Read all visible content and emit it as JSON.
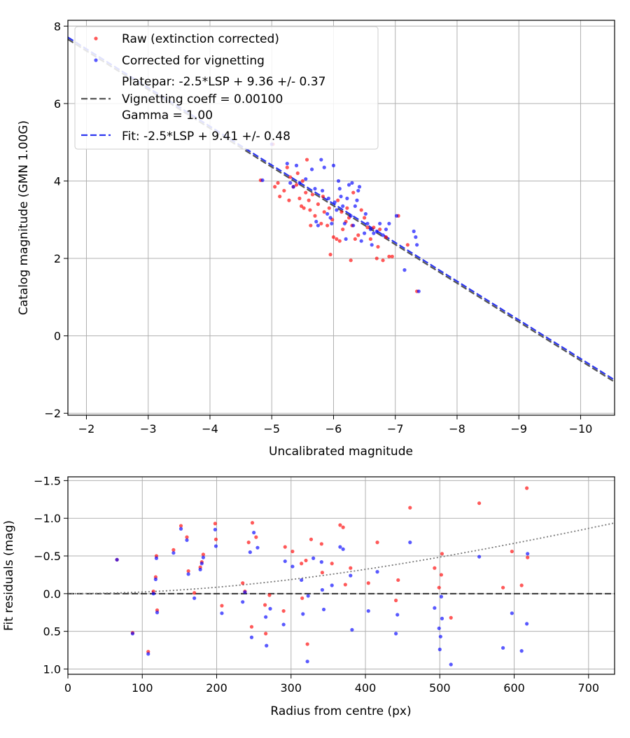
{
  "colors": {
    "raw": "#ff0000",
    "corrected": "#0000ff",
    "platepar_line": "#555555",
    "fit_line": "#2b35f0",
    "grid": "#b0b0b0",
    "zero_line": "#333333",
    "curve": "#777777"
  },
  "chart_data": [
    {
      "type": "scatter",
      "id": "calibration",
      "xlabel": "Uncalibrated magnitude",
      "ylabel": "Catalog magnitude (GMN 1.00G)",
      "xlim": [
        -1.7,
        -10.55
      ],
      "ylim": [
        8.15,
        -2.05
      ],
      "x_ticks": [
        -2,
        -3,
        -4,
        -5,
        -6,
        -7,
        -8,
        -9,
        -10
      ],
      "y_ticks": [
        -2,
        0,
        2,
        4,
        6,
        8
      ],
      "x_tick_labels": [
        "−2",
        "−3",
        "−4",
        "−5",
        "−6",
        "−7",
        "−8",
        "−9",
        "−10"
      ],
      "y_tick_labels": [
        "−2",
        "0",
        "2",
        "4",
        "6",
        "8"
      ],
      "grid": true,
      "legend_position": "top-left",
      "legend": [
        {
          "label": "Raw (extinction corrected)",
          "marker": "dot",
          "color": "raw"
        },
        {
          "label": "Corrected for vignetting",
          "marker": "dot",
          "color": "corrected"
        },
        {
          "label_lines": [
            "Platepar: -2.5*LSP + 9.36 +/- 0.37",
            "Vignetting coeff = 0.00100",
            "Gamma = 1.00"
          ],
          "marker": "dashed",
          "color": "platepar_line"
        },
        {
          "label": "Fit: -2.5*LSP + 9.41 +/- 0.48",
          "marker": "dashed",
          "color": "fit_line"
        }
      ],
      "lines": [
        {
          "name": "Platepar",
          "intercept": 9.36,
          "slope": 1.0,
          "style": "dashed",
          "color": "platepar_line"
        },
        {
          "name": "Fit",
          "intercept": 9.41,
          "slope": 1.0,
          "style": "dashed",
          "color": "fit_line"
        }
      ],
      "series": [
        {
          "name": "Raw (extinction corrected)",
          "color": "raw",
          "points": [
            [
              -4.82,
              4.02
            ],
            [
              -5.02,
              4.95
            ],
            [
              -5.05,
              3.85
            ],
            [
              -5.1,
              3.95
            ],
            [
              -5.13,
              3.6
            ],
            [
              -5.2,
              3.75
            ],
            [
              -5.25,
              4.35
            ],
            [
              -5.28,
              3.5
            ],
            [
              -5.3,
              4.1
            ],
            [
              -5.35,
              3.85
            ],
            [
              -5.4,
              3.9
            ],
            [
              -5.42,
              4.2
            ],
            [
              -5.45,
              3.55
            ],
            [
              -5.48,
              3.35
            ],
            [
              -5.5,
              4.0
            ],
            [
              -5.52,
              3.3
            ],
            [
              -5.55,
              3.7
            ],
            [
              -5.57,
              4.55
            ],
            [
              -5.6,
              3.5
            ],
            [
              -5.62,
              3.25
            ],
            [
              -5.63,
              2.85
            ],
            [
              -5.66,
              3.65
            ],
            [
              -5.7,
              3.1
            ],
            [
              -5.75,
              3.4
            ],
            [
              -5.8,
              2.9
            ],
            [
              -5.83,
              3.6
            ],
            [
              -5.85,
              3.2
            ],
            [
              -5.9,
              2.85
            ],
            [
              -5.93,
              3.3
            ],
            [
              -5.95,
              2.1
            ],
            [
              -5.98,
              3.0
            ],
            [
              -6.0,
              2.55
            ],
            [
              -6.05,
              2.5
            ],
            [
              -6.07,
              3.5
            ],
            [
              -6.1,
              2.45
            ],
            [
              -6.13,
              3.2
            ],
            [
              -6.15,
              2.75
            ],
            [
              -6.2,
              2.95
            ],
            [
              -6.22,
              3.3
            ],
            [
              -6.25,
              3.05
            ],
            [
              -6.28,
              1.95
            ],
            [
              -6.3,
              2.85
            ],
            [
              -6.32,
              3.7
            ],
            [
              -6.35,
              2.5
            ],
            [
              -6.4,
              2.6
            ],
            [
              -6.45,
              3.25
            ],
            [
              -6.5,
              3.05
            ],
            [
              -6.55,
              2.8
            ],
            [
              -6.6,
              2.5
            ],
            [
              -6.65,
              2.8
            ],
            [
              -6.7,
              2.0
            ],
            [
              -6.72,
              2.3
            ],
            [
              -6.75,
              2.75
            ],
            [
              -6.8,
              1.95
            ],
            [
              -6.85,
              2.55
            ],
            [
              -6.9,
              2.05
            ],
            [
              -6.95,
              2.05
            ],
            [
              -7.05,
              3.1
            ],
            [
              -7.2,
              2.35
            ],
            [
              -7.35,
              1.15
            ]
          ]
        },
        {
          "name": "Corrected for vignetting",
          "color": "corrected",
          "points": [
            [
              -4.85,
              4.02
            ],
            [
              -5.0,
              4.95
            ],
            [
              -5.25,
              4.45
            ],
            [
              -5.3,
              3.95
            ],
            [
              -5.35,
              3.85
            ],
            [
              -5.4,
              4.4
            ],
            [
              -5.45,
              3.95
            ],
            [
              -5.55,
              4.05
            ],
            [
              -5.65,
              4.3
            ],
            [
              -5.7,
              3.8
            ],
            [
              -5.72,
              2.95
            ],
            [
              -5.75,
              2.85
            ],
            [
              -5.8,
              4.55
            ],
            [
              -5.82,
              3.75
            ],
            [
              -5.85,
              4.35
            ],
            [
              -5.9,
              3.15
            ],
            [
              -5.92,
              3.55
            ],
            [
              -5.95,
              3.05
            ],
            [
              -5.97,
              2.9
            ],
            [
              -6.0,
              4.4
            ],
            [
              -6.02,
              3.45
            ],
            [
              -6.05,
              3.25
            ],
            [
              -6.08,
              4.0
            ],
            [
              -6.1,
              3.8
            ],
            [
              -6.12,
              3.6
            ],
            [
              -6.15,
              3.35
            ],
            [
              -6.18,
              2.9
            ],
            [
              -6.2,
              2.5
            ],
            [
              -6.22,
              3.55
            ],
            [
              -6.25,
              3.9
            ],
            [
              -6.28,
              3.1
            ],
            [
              -6.3,
              3.95
            ],
            [
              -6.32,
              2.85
            ],
            [
              -6.35,
              3.35
            ],
            [
              -6.38,
              3.5
            ],
            [
              -6.4,
              3.75
            ],
            [
              -6.42,
              3.85
            ],
            [
              -6.45,
              2.45
            ],
            [
              -6.5,
              2.65
            ],
            [
              -6.52,
              3.15
            ],
            [
              -6.55,
              2.9
            ],
            [
              -6.6,
              2.75
            ],
            [
              -6.62,
              2.35
            ],
            [
              -6.65,
              2.65
            ],
            [
              -6.7,
              2.7
            ],
            [
              -6.75,
              2.9
            ],
            [
              -6.8,
              2.6
            ],
            [
              -6.85,
              2.75
            ],
            [
              -6.9,
              2.9
            ],
            [
              -7.02,
              3.1
            ],
            [
              -7.15,
              1.7
            ],
            [
              -7.3,
              2.7
            ],
            [
              -7.33,
              2.55
            ],
            [
              -7.35,
              2.35
            ],
            [
              -7.38,
              1.15
            ]
          ]
        }
      ]
    },
    {
      "type": "scatter",
      "id": "residuals",
      "xlabel": "Radius from centre (px)",
      "ylabel": "Fit residuals (mag)",
      "xlim": [
        0,
        735
      ],
      "ylim": [
        -1.55,
        1.07
      ],
      "x_ticks": [
        0,
        100,
        200,
        300,
        400,
        500,
        600,
        700
      ],
      "y_ticks": [
        -1.5,
        -1.0,
        -0.5,
        0.0,
        0.5,
        1.0
      ],
      "x_tick_labels": [
        "0",
        "100",
        "200",
        "300",
        "400",
        "500",
        "600",
        "700"
      ],
      "y_tick_labels": [
        "−1.5",
        "−1.0",
        "−0.5",
        "0.0",
        "0.5",
        "1.0"
      ],
      "grid": true,
      "lines": [
        {
          "name": "Zero residual",
          "value": 0.0,
          "style": "dashed",
          "color": "zero_line"
        },
        {
          "name": "Vignetting curve",
          "coefficient": 0.001,
          "style": "dotted",
          "color": "curve"
        }
      ],
      "series": [
        {
          "name": "Raw (extinction corrected)",
          "color": "raw",
          "points": [
            [
              66,
              -0.45
            ],
            [
              87,
              0.52
            ],
            [
              108,
              0.77
            ],
            [
              115,
              -0.03
            ],
            [
              118,
              -0.22
            ],
            [
              119,
              -0.5
            ],
            [
              120,
              0.22
            ],
            [
              142,
              -0.58
            ],
            [
              152,
              -0.9
            ],
            [
              160,
              -0.75
            ],
            [
              162,
              -0.3
            ],
            [
              170,
              -0.01
            ],
            [
              178,
              -0.35
            ],
            [
              180,
              -0.42
            ],
            [
              182,
              -0.52
            ],
            [
              198,
              -0.93
            ],
            [
              199,
              -0.72
            ],
            [
              207,
              0.16
            ],
            [
              235,
              -0.14
            ],
            [
              238,
              -0.03
            ],
            [
              243,
              -0.68
            ],
            [
              247,
              0.44
            ],
            [
              248,
              -0.94
            ],
            [
              253,
              -0.75
            ],
            [
              265,
              0.15
            ],
            [
              266,
              0.53
            ],
            [
              271,
              0.02
            ],
            [
              290,
              0.23
            ],
            [
              292,
              -0.62
            ],
            [
              302,
              -0.56
            ],
            [
              314,
              -0.4
            ],
            [
              315,
              0.06
            ],
            [
              320,
              -0.44
            ],
            [
              322,
              0.67
            ],
            [
              327,
              -0.72
            ],
            [
              341,
              -0.66
            ],
            [
              342,
              -0.28
            ],
            [
              355,
              -0.4
            ],
            [
              366,
              -0.91
            ],
            [
              370,
              -0.88
            ],
            [
              373,
              -0.12
            ],
            [
              380,
              -0.34
            ],
            [
              404,
              -0.14
            ],
            [
              416,
              -0.68
            ],
            [
              441,
              0.09
            ],
            [
              444,
              -0.18
            ],
            [
              460,
              -1.14
            ],
            [
              493,
              -0.34
            ],
            [
              499,
              -0.08
            ],
            [
              502,
              -0.25
            ],
            [
              503,
              -0.53
            ],
            [
              515,
              0.32
            ],
            [
              553,
              -1.2
            ],
            [
              585,
              -0.08
            ],
            [
              597,
              -0.56
            ],
            [
              610,
              -0.11
            ],
            [
              617,
              -1.4
            ],
            [
              618,
              -0.48
            ]
          ]
        },
        {
          "name": "Corrected for vignetting",
          "color": "corrected",
          "points": [
            [
              66,
              -0.45
            ],
            [
              87,
              0.53
            ],
            [
              108,
              0.8
            ],
            [
              115,
              0.0
            ],
            [
              118,
              -0.19
            ],
            [
              119,
              -0.47
            ],
            [
              120,
              0.25
            ],
            [
              142,
              -0.54
            ],
            [
              152,
              -0.86
            ],
            [
              160,
              -0.71
            ],
            [
              162,
              -0.26
            ],
            [
              170,
              0.06
            ],
            [
              178,
              -0.32
            ],
            [
              180,
              -0.4
            ],
            [
              182,
              -0.48
            ],
            [
              198,
              -0.85
            ],
            [
              199,
              -0.63
            ],
            [
              207,
              0.26
            ],
            [
              235,
              0.11
            ],
            [
              238,
              -0.02
            ],
            [
              245,
              -0.55
            ],
            [
              247,
              0.58
            ],
            [
              250,
              -0.81
            ],
            [
              255,
              -0.61
            ],
            [
              266,
              0.31
            ],
            [
              267,
              0.69
            ],
            [
              272,
              0.2
            ],
            [
              290,
              0.41
            ],
            [
              292,
              -0.43
            ],
            [
              302,
              -0.36
            ],
            [
              314,
              -0.18
            ],
            [
              316,
              0.27
            ],
            [
              322,
              0.9
            ],
            [
              323,
              0.03
            ],
            [
              330,
              -0.47
            ],
            [
              341,
              -0.42
            ],
            [
              342,
              -0.05
            ],
            [
              344,
              0.21
            ],
            [
              355,
              -0.11
            ],
            [
              366,
              -0.62
            ],
            [
              370,
              -0.59
            ],
            [
              380,
              -0.24
            ],
            [
              382,
              0.48
            ],
            [
              404,
              0.23
            ],
            [
              416,
              -0.29
            ],
            [
              441,
              0.53
            ],
            [
              443,
              0.28
            ],
            [
              460,
              -0.68
            ],
            [
              493,
              0.19
            ],
            [
              499,
              0.46
            ],
            [
              500,
              0.74
            ],
            [
              501,
              0.57
            ],
            [
              502,
              0.04
            ],
            [
              503,
              0.33
            ],
            [
              515,
              0.94
            ],
            [
              553,
              -0.49
            ],
            [
              585,
              0.72
            ],
            [
              597,
              0.26
            ],
            [
              610,
              0.76
            ],
            [
              617,
              0.4
            ],
            [
              618,
              -0.53
            ]
          ]
        }
      ]
    }
  ]
}
